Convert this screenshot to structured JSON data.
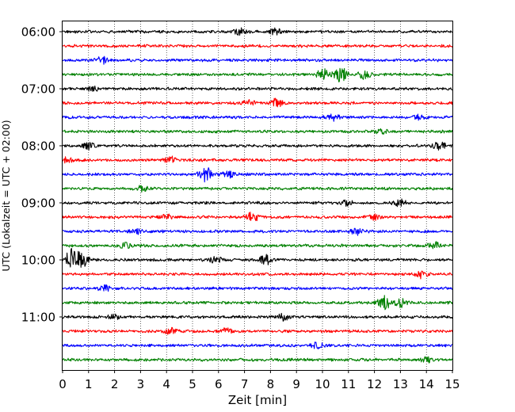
{
  "chart_data": {
    "type": "line",
    "title": "",
    "xlabel": "Zeit  [min]",
    "ylabel": "UTC (Lokalzeit = UTC + 02:00)",
    "xlim": [
      0,
      15
    ],
    "x_ticks": [
      0,
      1,
      2,
      3,
      4,
      5,
      6,
      7,
      8,
      9,
      10,
      11,
      12,
      13,
      14,
      15
    ],
    "x_tick_labels": [
      "0",
      "1",
      "2",
      "3",
      "4",
      "5",
      "6",
      "7",
      "8",
      "9",
      "10",
      "11",
      "12",
      "13",
      "14",
      "15"
    ],
    "y_tick_labels": [
      "06:00",
      "07:00",
      "08:00",
      "09:00",
      "10:00",
      "11:00"
    ],
    "y_tick_rows": [
      0,
      4,
      8,
      12,
      16,
      20
    ],
    "vertical_grid": "dotted",
    "colors": [
      "#000000",
      "#ff0000",
      "#0000ff",
      "#008000"
    ],
    "traces": [
      {
        "start": "06:00",
        "color": "#000000",
        "events": [
          {
            "x": 6.8,
            "amp": 4
          },
          {
            "x": 8.2,
            "amp": 5
          }
        ]
      },
      {
        "start": "06:15",
        "color": "#ff0000",
        "events": []
      },
      {
        "start": "06:30",
        "color": "#0000ff",
        "events": [
          {
            "x": 1.5,
            "amp": 4
          }
        ]
      },
      {
        "start": "06:45",
        "color": "#008000",
        "events": [
          {
            "x": 10.0,
            "amp": 7
          },
          {
            "x": 10.7,
            "amp": 9
          },
          {
            "x": 11.6,
            "amp": 5
          }
        ]
      },
      {
        "start": "07:00",
        "color": "#000000",
        "events": [
          {
            "x": 1.2,
            "amp": 3
          }
        ]
      },
      {
        "start": "07:15",
        "color": "#ff0000",
        "events": [
          {
            "x": 7.2,
            "amp": 4
          },
          {
            "x": 8.2,
            "amp": 6
          }
        ]
      },
      {
        "start": "07:30",
        "color": "#0000ff",
        "events": [
          {
            "x": 10.4,
            "amp": 4
          },
          {
            "x": 13.7,
            "amp": 3
          }
        ]
      },
      {
        "start": "07:45",
        "color": "#008000",
        "events": [
          {
            "x": 12.3,
            "amp": 3
          }
        ]
      },
      {
        "start": "08:00",
        "color": "#000000",
        "events": [
          {
            "x": 1.0,
            "amp": 4
          },
          {
            "x": 14.5,
            "amp": 5
          }
        ]
      },
      {
        "start": "08:15",
        "color": "#ff0000",
        "events": [
          {
            "x": 0.2,
            "amp": 4
          },
          {
            "x": 4.2,
            "amp": 5
          }
        ]
      },
      {
        "start": "08:30",
        "color": "#0000ff",
        "events": [
          {
            "x": 5.5,
            "amp": 9
          },
          {
            "x": 6.4,
            "amp": 4
          }
        ]
      },
      {
        "start": "08:45",
        "color": "#008000",
        "events": [
          {
            "x": 3.1,
            "amp": 4
          }
        ]
      },
      {
        "start": "09:00",
        "color": "#000000",
        "events": [
          {
            "x": 10.9,
            "amp": 3
          },
          {
            "x": 13.0,
            "amp": 4
          }
        ]
      },
      {
        "start": "09:15",
        "color": "#ff0000",
        "events": [
          {
            "x": 4.0,
            "amp": 3
          },
          {
            "x": 7.3,
            "amp": 6
          },
          {
            "x": 12.0,
            "amp": 3
          }
        ]
      },
      {
        "start": "09:30",
        "color": "#0000ff",
        "events": [
          {
            "x": 2.8,
            "amp": 3
          },
          {
            "x": 11.3,
            "amp": 4
          }
        ]
      },
      {
        "start": "09:45",
        "color": "#008000",
        "events": [
          {
            "x": 2.4,
            "amp": 3
          },
          {
            "x": 14.3,
            "amp": 4
          }
        ]
      },
      {
        "start": "10:00",
        "color": "#000000",
        "events": [
          {
            "x": 0.35,
            "amp": 13
          },
          {
            "x": 0.75,
            "amp": 9
          },
          {
            "x": 5.9,
            "amp": 4
          },
          {
            "x": 7.8,
            "amp": 6
          }
        ]
      },
      {
        "start": "10:15",
        "color": "#ff0000",
        "events": [
          {
            "x": 13.8,
            "amp": 5
          }
        ]
      },
      {
        "start": "10:30",
        "color": "#0000ff",
        "events": [
          {
            "x": 1.6,
            "amp": 4
          }
        ]
      },
      {
        "start": "10:45",
        "color": "#008000",
        "events": [
          {
            "x": 12.35,
            "amp": 10
          },
          {
            "x": 13.0,
            "amp": 5
          }
        ]
      },
      {
        "start": "11:00",
        "color": "#000000",
        "events": [
          {
            "x": 2.0,
            "amp": 3
          },
          {
            "x": 8.5,
            "amp": 4
          }
        ]
      },
      {
        "start": "11:15",
        "color": "#ff0000",
        "events": [
          {
            "x": 4.1,
            "amp": 4
          },
          {
            "x": 6.3,
            "amp": 3
          }
        ]
      },
      {
        "start": "11:30",
        "color": "#0000ff",
        "events": [
          {
            "x": 9.8,
            "amp": 3
          }
        ]
      },
      {
        "start": "11:45",
        "color": "#008000",
        "events": [
          {
            "x": 14.0,
            "amp": 3
          }
        ]
      }
    ]
  }
}
